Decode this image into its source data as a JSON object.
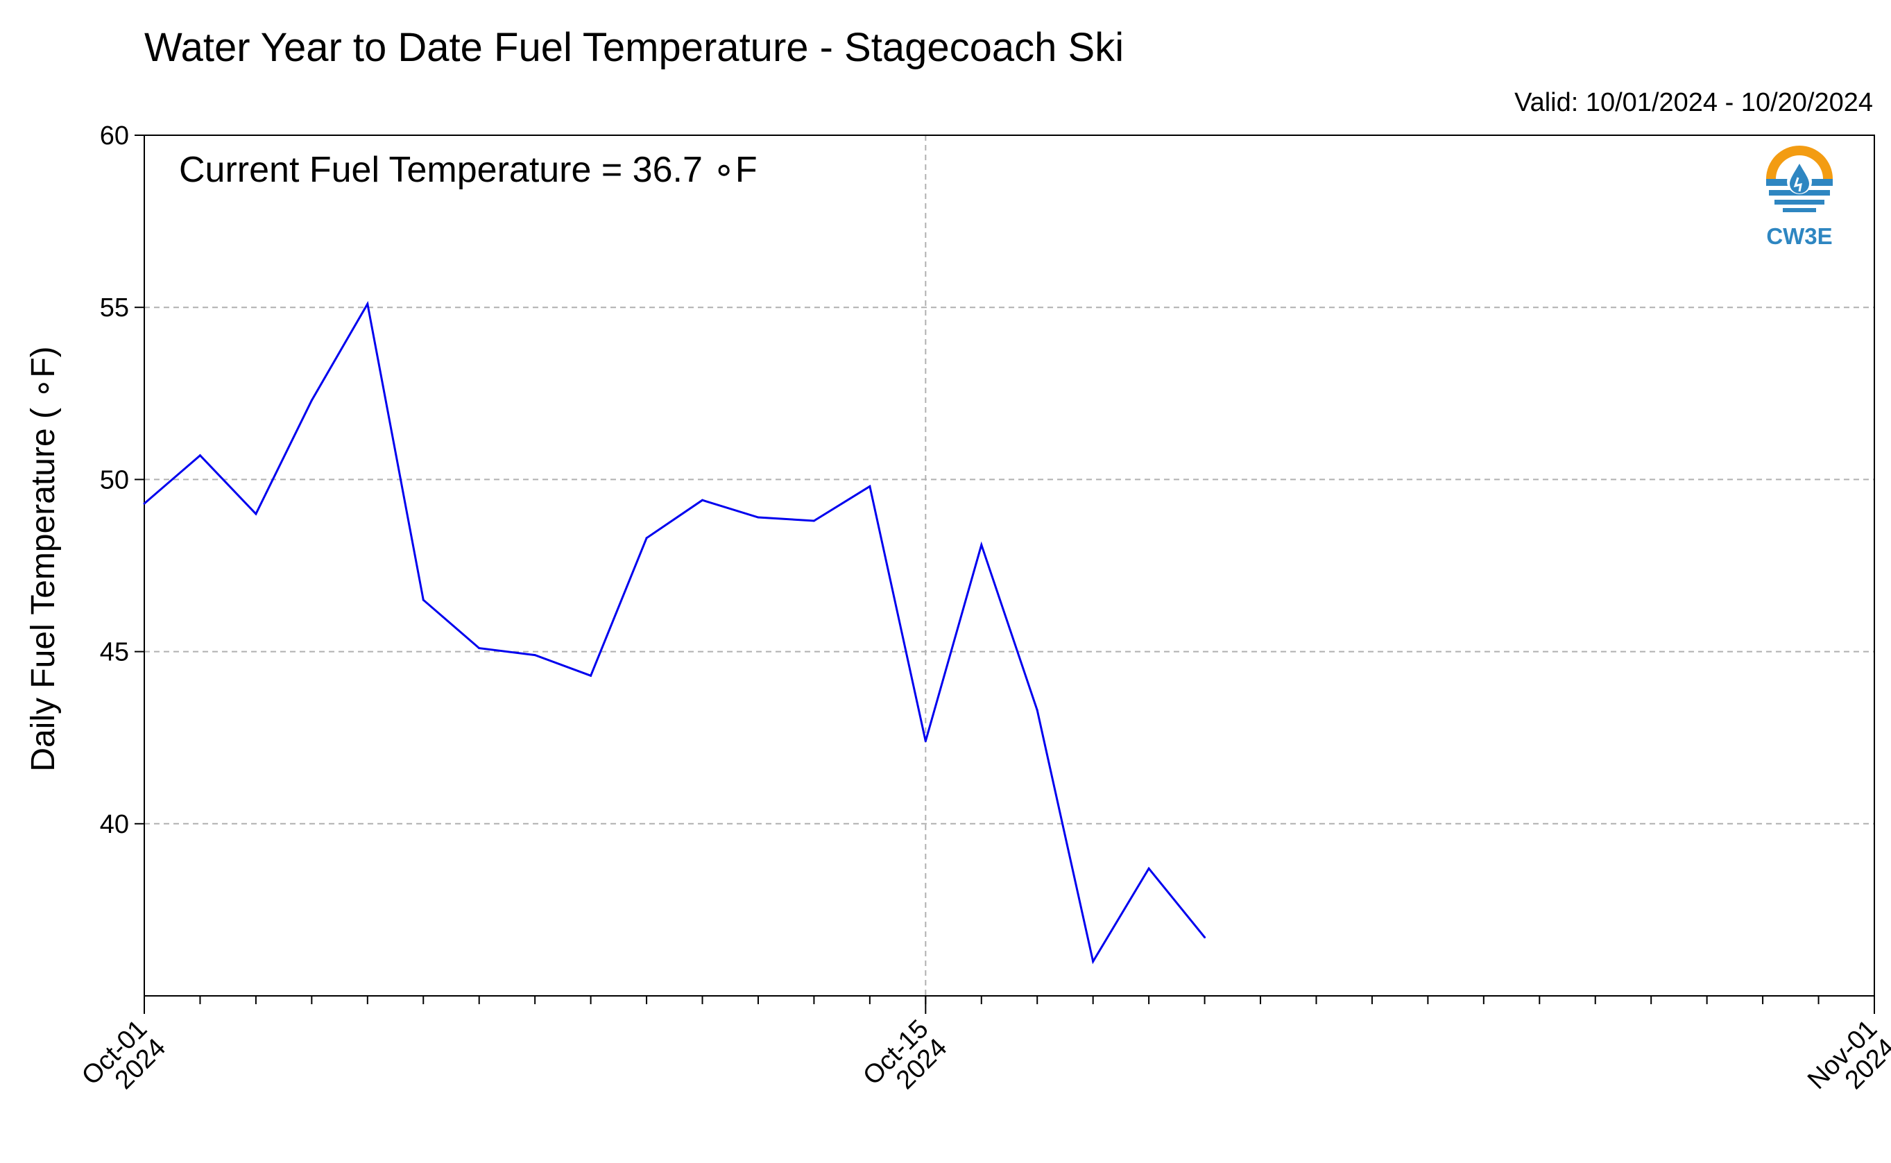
{
  "chart_data": {
    "type": "line",
    "title": "Water Year to Date Fuel Temperature - Stagecoach Ski",
    "subtitle": "Valid: 10/01/2024 - 10/20/2024",
    "xlabel": "",
    "ylabel": "Daily Fuel Temperature ( ∘F)",
    "annotation": "Current Fuel Temperature = 36.7  ∘F",
    "xlim": [
      "2024-10-01",
      "2024-11-01"
    ],
    "ylim": [
      35,
      60
    ],
    "yticks": [
      40,
      45,
      50,
      55,
      60
    ],
    "xticks": [
      {
        "date": "2024-10-01",
        "line1": "Oct-01",
        "line2": "2024"
      },
      {
        "date": "2024-10-15",
        "line1": "Oct-15",
        "line2": "2024"
      },
      {
        "date": "2024-11-01",
        "line1": "Nov-01",
        "line2": "2024"
      }
    ],
    "grid": true,
    "series": [
      {
        "color": "#0000ee",
        "x": [
          "2024-10-01",
          "2024-10-02",
          "2024-10-03",
          "2024-10-04",
          "2024-10-05",
          "2024-10-06",
          "2024-10-07",
          "2024-10-08",
          "2024-10-09",
          "2024-10-10",
          "2024-10-11",
          "2024-10-12",
          "2024-10-13",
          "2024-10-14",
          "2024-10-15",
          "2024-10-16",
          "2024-10-17",
          "2024-10-18",
          "2024-10-19",
          "2024-10-20"
        ],
        "y": [
          49.3,
          50.7,
          49.0,
          52.3,
          55.1,
          46.5,
          45.1,
          44.9,
          44.3,
          48.3,
          49.4,
          48.9,
          48.8,
          49.8,
          42.4,
          48.1,
          43.3,
          36.0,
          38.7,
          36.7
        ]
      }
    ],
    "logo_text": "CW3E",
    "colors": {
      "line": "#0000ee",
      "grid": "#b0b0b0",
      "logo_orange": "#f39c12",
      "logo_blue": "#2e86c1"
    }
  }
}
